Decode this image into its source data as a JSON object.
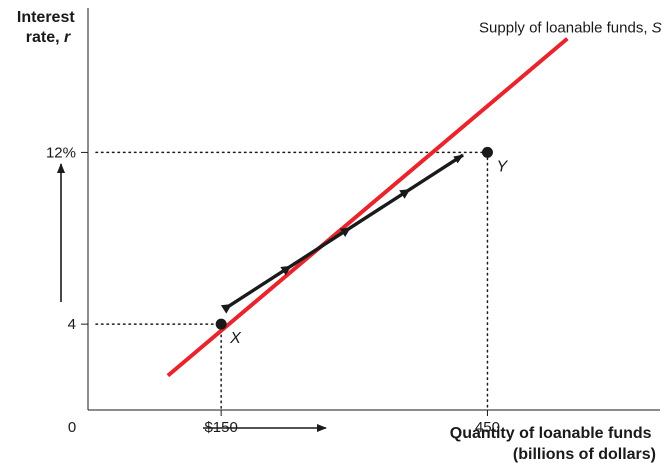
{
  "chart_data": {
    "type": "line",
    "ylabel": "Interest rate, r",
    "xlabel": "Quantity of loanable funds (billions of dollars)",
    "xlabel_lines": [
      "Quantity of loanable funds",
      "(billions of dollars)"
    ],
    "origin_label": "0",
    "xlim": [
      0,
      650
    ],
    "ylim": [
      0,
      19.1
    ],
    "x_ticks": [
      {
        "value": 150,
        "label": "$150"
      },
      {
        "value": 450,
        "label": "450"
      }
    ],
    "y_ticks": [
      {
        "value": 4,
        "label": "4"
      },
      {
        "value": 12,
        "label": "12%"
      }
    ],
    "series": [
      {
        "name": "Supply of loanable funds, S",
        "x": [
          90,
          540
        ],
        "y": [
          1.6,
          17.3
        ],
        "color": "#e8242d"
      }
    ],
    "points": [
      {
        "label": "X",
        "x": 150,
        "y": 4
      },
      {
        "label": "Y",
        "x": 450,
        "y": 12
      }
    ],
    "annotations": [
      "movement along the supply curve from X to Y",
      "interest rate rises from 4% to 12%",
      "quantity rises from $150 to $450"
    ],
    "grid": false
  }
}
